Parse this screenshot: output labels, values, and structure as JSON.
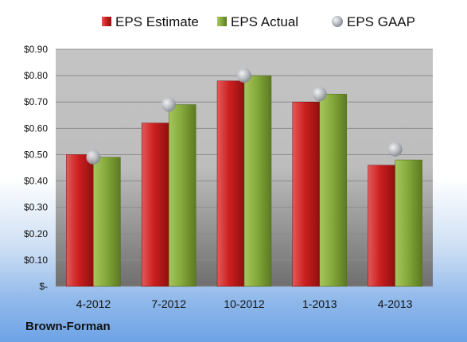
{
  "chart_data": {
    "type": "bar",
    "categories": [
      "4-2012",
      "7-2012",
      "10-2012",
      "1-2013",
      "4-2013"
    ],
    "series": [
      {
        "name": "EPS Estimate",
        "kind": "bar",
        "color": "#cc2222",
        "values": [
          0.5,
          0.62,
          0.78,
          0.7,
          0.46
        ]
      },
      {
        "name": "EPS Actual",
        "kind": "bar",
        "color": "#84a93a",
        "values": [
          0.49,
          0.69,
          0.8,
          0.73,
          0.48
        ]
      },
      {
        "name": "EPS GAAP",
        "kind": "marker",
        "color": "#b8bcc4",
        "values": [
          0.49,
          0.69,
          0.8,
          0.73,
          0.52
        ]
      }
    ],
    "ylim": [
      0,
      0.9
    ],
    "yticks": [
      {
        "value": 0.0,
        "label": "$-"
      },
      {
        "value": 0.1,
        "label": "$0.10"
      },
      {
        "value": 0.2,
        "label": "$0.20"
      },
      {
        "value": 0.3,
        "label": "$0.30"
      },
      {
        "value": 0.4,
        "label": "$0.40"
      },
      {
        "value": 0.5,
        "label": "$0.50"
      },
      {
        "value": 0.6,
        "label": "$0.60"
      },
      {
        "value": 0.7,
        "label": "$0.70"
      },
      {
        "value": 0.8,
        "label": "$0.80"
      },
      {
        "value": 0.9,
        "label": "$0.90"
      }
    ],
    "grid": true,
    "legend_position": "top",
    "footer": "Brown-Forman"
  }
}
